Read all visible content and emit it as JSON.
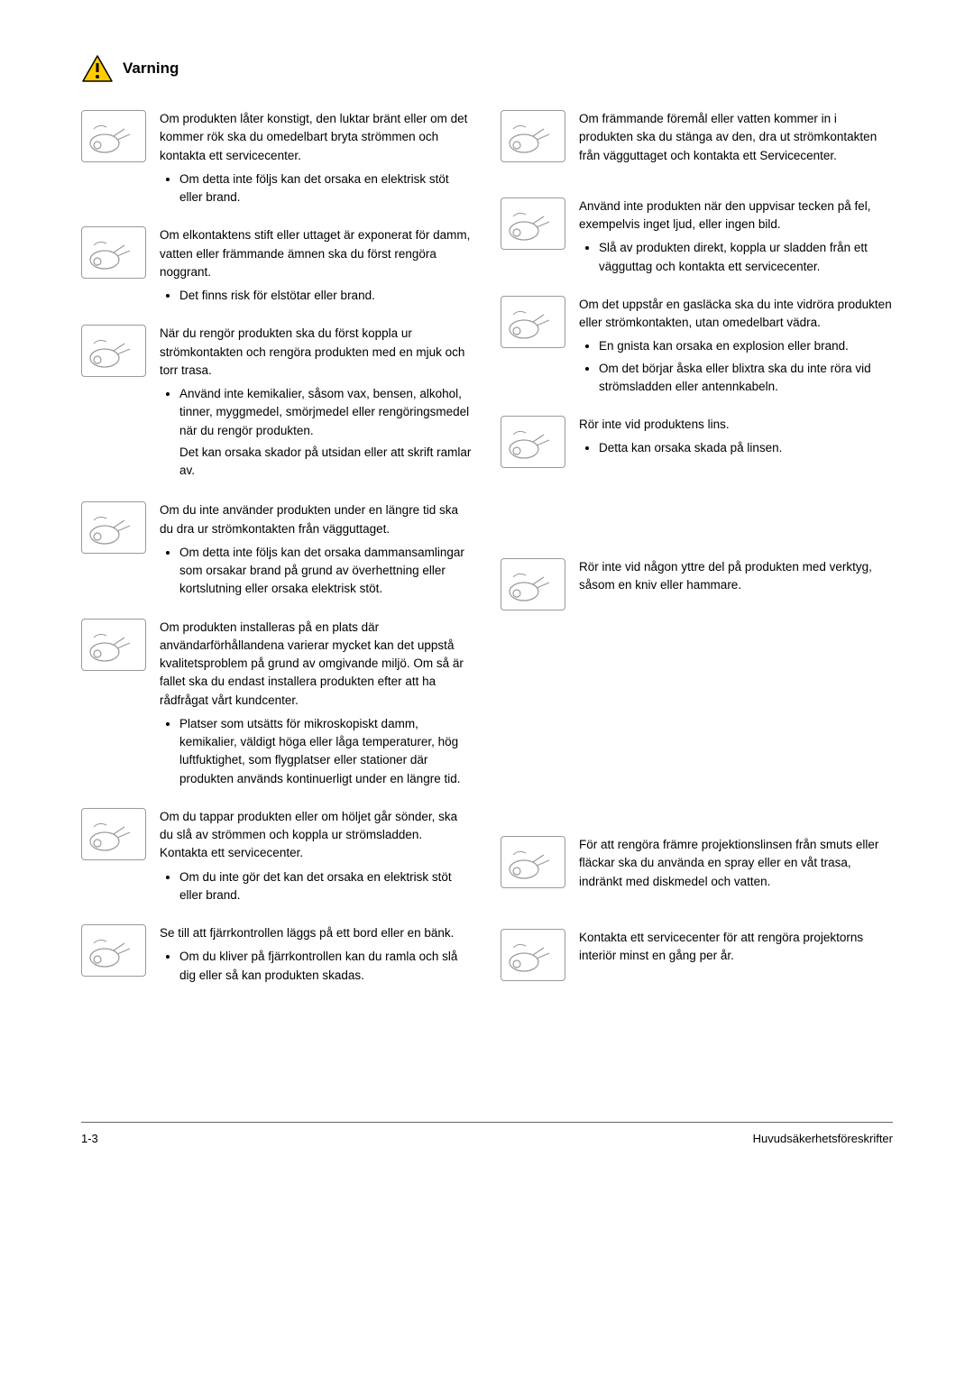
{
  "header": {
    "title": "Varning",
    "triangle_fill": "#ffcc00",
    "triangle_stroke": "#000000"
  },
  "left": [
    {
      "para": "Om produkten låter konstigt, den luktar bränt eller om det kommer rök ska du omedelbart bryta strömmen och kontakta ett servicecenter.",
      "bullets": [
        "Om detta inte följs kan det orsaka en elektrisk stöt eller brand."
      ]
    },
    {
      "para": "Om elkontaktens stift eller uttaget är exponerat för damm, vatten eller främmande ämnen ska du först rengöra noggrant.",
      "bullets": [
        "Det finns risk för elstötar eller brand."
      ]
    },
    {
      "para": "När du rengör produkten ska du först koppla ur strömkontakten och rengöra produkten med en mjuk och torr trasa.",
      "bullets": [
        "Använd inte kemikalier, såsom vax, bensen, alkohol, tinner, myggmedel, smörjmedel eller rengöringsmedel när du rengör produkten."
      ],
      "sub": "Det kan orsaka skador på utsidan eller att skrift ramlar av."
    },
    {
      "para": "Om du inte använder produkten under en längre tid ska du dra ur strömkontakten från vägguttaget.",
      "bullets": [
        "Om detta inte följs kan det orsaka dammansamlingar som orsakar brand på grund av överhettning eller kortslutning eller orsaka elektrisk stöt."
      ]
    },
    {
      "para": "Om produkten installeras på en plats där användarförhållandena varierar mycket kan det uppstå kvalitetsproblem på grund av omgivande miljö. Om så är fallet ska du endast installera produkten efter att ha rådfrågat vårt kundcenter.",
      "bullets": [
        "Platser som utsätts för mikroskopiskt damm, kemikalier, väldigt höga eller låga temperaturer, hög luftfuktighet, som flygplatser eller stationer där produkten används kontinuerligt under en längre tid."
      ]
    },
    {
      "para": "Om du tappar produkten eller om höljet går sönder, ska du slå av strömmen och koppla ur strömsladden. Kontakta ett servicecenter.",
      "bullets": [
        "Om du inte gör det kan det orsaka en elektrisk stöt eller brand."
      ]
    },
    {
      "para": "Se till att fjärrkontrollen läggs på ett bord eller en bänk.",
      "bullets": [
        "Om du kliver på fjärrkontrollen kan du ramla och slå dig eller så kan produkten skadas."
      ]
    }
  ],
  "right": [
    {
      "para": "Om främmande föremål eller vatten kommer in i produkten ska du stänga av den, dra ut strömkontakten från vägguttaget och kontakta ett Servicecenter.",
      "bullets": []
    },
    {
      "para": "Använd inte produkten när den uppvisar tecken på fel, exempelvis inget ljud, eller ingen bild.",
      "bullets": [
        "Slå av produkten direkt, koppla ur sladden från ett vägguttag och kontakta ett servicecenter."
      ]
    },
    {
      "para": "Om det uppstår en gasläcka ska du inte vidröra produkten eller strömkontakten, utan omedelbart vädra.",
      "bullets": [
        "En gnista kan orsaka en explosion eller brand.",
        "Om det börjar åska eller blixtra ska du inte röra vid strömsladden eller antennkabeln."
      ]
    },
    {
      "para": "Rör inte vid produktens lins.",
      "bullets": [
        "Detta kan orsaka skada på linsen."
      ]
    },
    {
      "para": "Rör inte vid någon yttre del på produkten med verktyg, såsom en kniv eller hammare.",
      "bullets": []
    },
    {
      "para": "För att rengöra främre projektionslinsen från smuts eller fläckar ska du använda en spray eller en våt trasa, indränkt med diskmedel och vatten.",
      "bullets": []
    },
    {
      "para": "Kontakta ett servicecenter för att rengöra projektorns interiör minst en gång per år.",
      "bullets": []
    }
  ],
  "footer": {
    "left": "1-3",
    "right": "Huvudsäkerhetsföreskrifter"
  }
}
